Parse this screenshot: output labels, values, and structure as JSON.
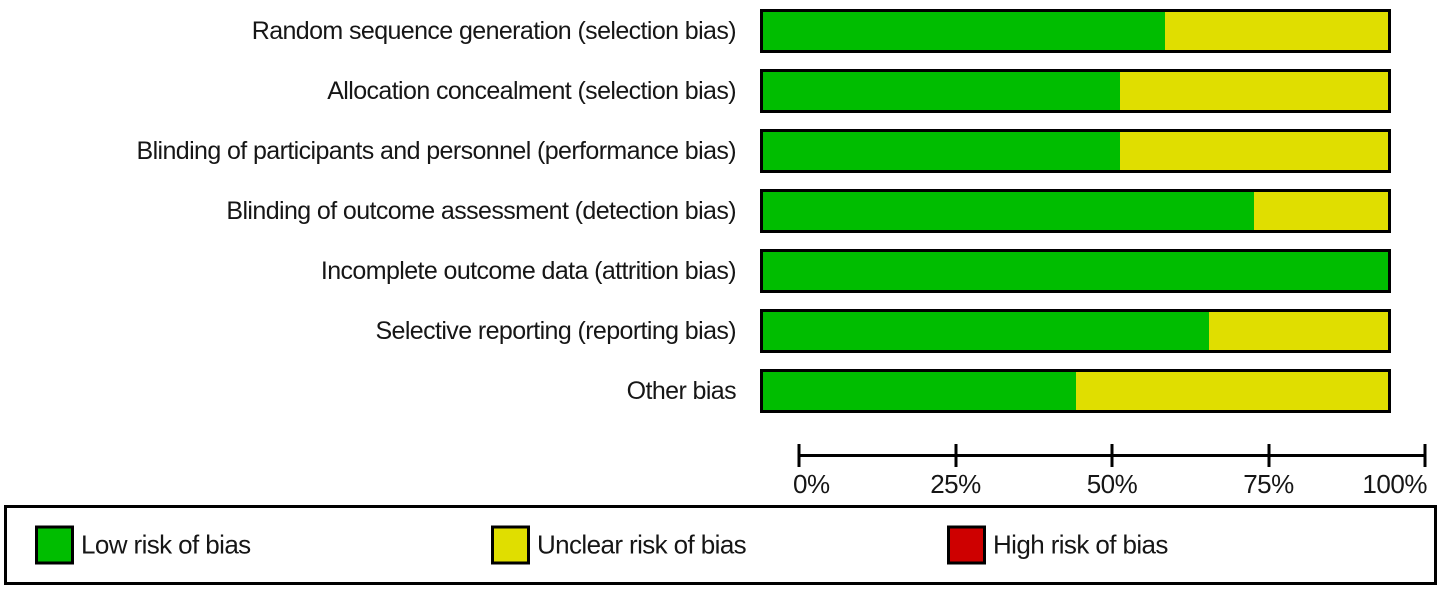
{
  "colors": {
    "low_risk": "#00bd00",
    "unclear_risk": "#e0de00",
    "high_risk": "#ce0000",
    "outline": "#000000",
    "background": "#ffffff"
  },
  "chart_data": {
    "type": "bar",
    "orientation": "horizontal",
    "stacked": true,
    "title": "",
    "xlabel": "",
    "ylabel": "",
    "categories": [
      "Random sequence generation (selection bias)",
      "Allocation concealment (selection bias)",
      "Blinding of participants and personnel (performance bias)",
      "Blinding of outcome assessment (detection bias)",
      "Incomplete outcome data (attrition bias)",
      "Selective reporting (reporting bias)",
      "Other bias"
    ],
    "series": [
      {
        "name": "Low risk of bias",
        "color": "#00bd00",
        "values": [
          64.3,
          57.1,
          57.1,
          78.6,
          100,
          71.4,
          50
        ]
      },
      {
        "name": "Unclear risk of bias",
        "color": "#e0de00",
        "values": [
          35.7,
          42.9,
          42.9,
          21.4,
          0,
          28.6,
          50
        ]
      },
      {
        "name": "High risk of bias",
        "color": "#ce0000",
        "values": [
          0,
          0,
          0,
          0,
          0,
          0,
          0
        ]
      }
    ],
    "x_axis": {
      "min": 0,
      "max": 100,
      "tick_labels": [
        "0%",
        "25%",
        "50%",
        "75%",
        "100%"
      ],
      "grid": false
    },
    "legend": {
      "position": "bottom",
      "entries": [
        "Low risk of bias",
        "Unclear risk of bias",
        "High risk of bias"
      ]
    }
  }
}
